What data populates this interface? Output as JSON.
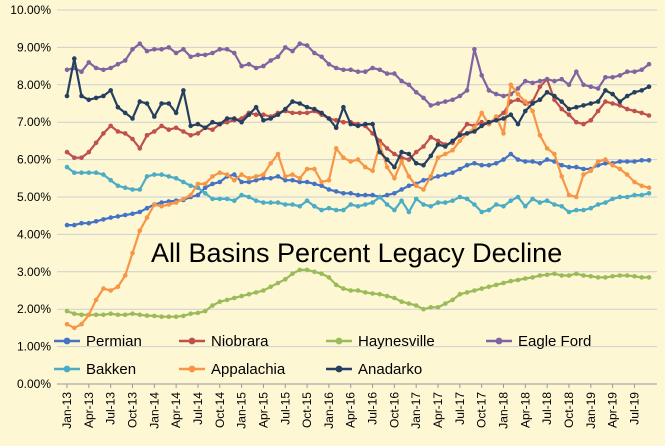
{
  "chart_data": {
    "type": "line",
    "title": "All Basins Percent Legacy Decline",
    "ylim": [
      0,
      10
    ],
    "y_ticks": [
      "0.00%",
      "1.00%",
      "2.00%",
      "3.00%",
      "4.00%",
      "5.00%",
      "6.00%",
      "7.00%",
      "8.00%",
      "9.00%",
      "10.00%"
    ],
    "x_tick_labels": [
      "Jan-13",
      "Apr-13",
      "Jul-13",
      "Oct-13",
      "Jan-14",
      "Apr-14",
      "Jul-14",
      "Oct-14",
      "Jan-15",
      "Apr-15",
      "Jul-15",
      "Oct-15",
      "Jan-16",
      "Apr-16",
      "Jul-16",
      "Oct-16",
      "Jan-17",
      "Apr-17",
      "Jul-17",
      "Oct-17",
      "Jan-18",
      "Apr-18",
      "Jul-18",
      "Oct-18",
      "Jan-19",
      "Apr-19",
      "Jul-19"
    ],
    "x": [
      "Jan-13",
      "Feb-13",
      "Mar-13",
      "Apr-13",
      "May-13",
      "Jun-13",
      "Jul-13",
      "Aug-13",
      "Sep-13",
      "Oct-13",
      "Nov-13",
      "Dec-13",
      "Jan-14",
      "Feb-14",
      "Mar-14",
      "Apr-14",
      "May-14",
      "Jun-14",
      "Jul-14",
      "Aug-14",
      "Sep-14",
      "Oct-14",
      "Nov-14",
      "Dec-14",
      "Jan-15",
      "Feb-15",
      "Mar-15",
      "Apr-15",
      "May-15",
      "Jun-15",
      "Jul-15",
      "Aug-15",
      "Sep-15",
      "Oct-15",
      "Nov-15",
      "Dec-15",
      "Jan-16",
      "Feb-16",
      "Mar-16",
      "Apr-16",
      "May-16",
      "Jun-16",
      "Jul-16",
      "Aug-16",
      "Sep-16",
      "Oct-16",
      "Nov-16",
      "Dec-16",
      "Jan-17",
      "Feb-17",
      "Mar-17",
      "Apr-17",
      "May-17",
      "Jun-17",
      "Jul-17",
      "Aug-17",
      "Sep-17",
      "Oct-17",
      "Nov-17",
      "Dec-17",
      "Jan-18",
      "Feb-18",
      "Mar-18",
      "Apr-18",
      "May-18",
      "Jun-18",
      "Jul-18",
      "Aug-18",
      "Sep-18",
      "Oct-18",
      "Nov-18",
      "Dec-18",
      "Jan-19",
      "Feb-19",
      "Mar-19",
      "Apr-19",
      "May-19",
      "Jun-19",
      "Jul-19",
      "Aug-19",
      "Sep-19"
    ],
    "legend_position": "bottom",
    "grid": "horizontal",
    "series": [
      {
        "name": "Permian",
        "color": "#4472c4",
        "values": [
          4.25,
          4.25,
          4.3,
          4.3,
          4.35,
          4.4,
          4.45,
          4.48,
          4.52,
          4.55,
          4.6,
          4.7,
          4.8,
          4.85,
          4.88,
          4.9,
          4.92,
          5.0,
          5.05,
          5.25,
          5.35,
          5.4,
          5.55,
          5.6,
          5.4,
          5.4,
          5.45,
          5.5,
          5.5,
          5.55,
          5.45,
          5.45,
          5.4,
          5.4,
          5.35,
          5.3,
          5.2,
          5.15,
          5.1,
          5.1,
          5.05,
          5.05,
          5.05,
          5.0,
          5.05,
          5.1,
          5.2,
          5.3,
          5.35,
          5.45,
          5.5,
          5.55,
          5.6,
          5.65,
          5.75,
          5.85,
          5.9,
          5.85,
          5.85,
          5.9,
          6.0,
          6.15,
          6.0,
          5.95,
          5.95,
          5.9,
          6.0,
          5.95,
          5.85,
          5.8,
          5.8,
          5.75,
          5.75,
          5.85,
          5.9,
          5.9,
          5.95,
          5.95,
          5.95,
          5.98,
          5.98
        ]
      },
      {
        "name": "Niobrara",
        "color": "#c0504d",
        "values": [
          6.2,
          6.05,
          6.05,
          6.2,
          6.45,
          6.7,
          6.9,
          6.75,
          6.7,
          6.55,
          6.3,
          6.65,
          6.75,
          6.9,
          6.8,
          6.85,
          6.75,
          6.65,
          6.7,
          6.85,
          6.8,
          6.95,
          7.0,
          7.05,
          7.1,
          7.25,
          7.2,
          7.2,
          7.15,
          7.25,
          7.3,
          7.25,
          7.25,
          7.25,
          7.3,
          7.2,
          7.1,
          7.05,
          7.0,
          7.0,
          6.95,
          6.9,
          6.7,
          6.5,
          6.3,
          6.15,
          6.05,
          6.0,
          6.2,
          6.35,
          6.6,
          6.5,
          6.4,
          6.45,
          6.7,
          6.95,
          6.9,
          7.0,
          6.95,
          7.1,
          7.25,
          7.55,
          7.6,
          7.5,
          7.55,
          7.95,
          8.15,
          7.6,
          7.35,
          7.2,
          7.0,
          6.95,
          7.05,
          7.3,
          7.55,
          7.5,
          7.45,
          7.35,
          7.3,
          7.25,
          7.18
        ]
      },
      {
        "name": "Haynesville",
        "color": "#9bbb59",
        "values": [
          1.95,
          1.88,
          1.85,
          1.85,
          1.85,
          1.85,
          1.88,
          1.85,
          1.85,
          1.88,
          1.85,
          1.83,
          1.82,
          1.8,
          1.8,
          1.8,
          1.82,
          1.88,
          1.9,
          1.95,
          2.1,
          2.2,
          2.25,
          2.3,
          2.35,
          2.4,
          2.45,
          2.5,
          2.6,
          2.7,
          2.8,
          2.95,
          3.05,
          3.05,
          3.0,
          2.95,
          2.85,
          2.65,
          2.55,
          2.5,
          2.5,
          2.45,
          2.42,
          2.4,
          2.35,
          2.3,
          2.2,
          2.15,
          2.1,
          2.0,
          2.05,
          2.05,
          2.15,
          2.25,
          2.4,
          2.45,
          2.5,
          2.55,
          2.6,
          2.65,
          2.7,
          2.75,
          2.78,
          2.82,
          2.85,
          2.9,
          2.92,
          2.95,
          2.9,
          2.9,
          2.95,
          2.9,
          2.88,
          2.85,
          2.85,
          2.88,
          2.9,
          2.9,
          2.88,
          2.85,
          2.85
        ]
      },
      {
        "name": "Eagle  Ford",
        "color": "#8064a2",
        "values": [
          8.4,
          8.45,
          8.35,
          8.6,
          8.45,
          8.4,
          8.45,
          8.55,
          8.65,
          8.95,
          9.1,
          8.9,
          8.95,
          8.95,
          9.0,
          8.85,
          8.95,
          8.75,
          8.8,
          8.8,
          8.85,
          8.95,
          8.95,
          8.85,
          8.5,
          8.55,
          8.45,
          8.5,
          8.65,
          8.75,
          9.0,
          8.9,
          9.1,
          9.05,
          8.85,
          8.75,
          8.55,
          8.45,
          8.4,
          8.4,
          8.35,
          8.35,
          8.45,
          8.4,
          8.3,
          8.3,
          8.1,
          8.0,
          7.8,
          7.65,
          7.45,
          7.5,
          7.55,
          7.6,
          7.7,
          7.85,
          8.95,
          8.25,
          7.85,
          7.75,
          7.7,
          7.75,
          7.9,
          8.1,
          8.05,
          8.1,
          8.15,
          8.1,
          8.15,
          8.0,
          8.35,
          8.0,
          7.95,
          7.9,
          8.2,
          8.2,
          8.25,
          8.35,
          8.35,
          8.4,
          8.55
        ]
      },
      {
        "name": "Bakken",
        "color": "#4bacc6",
        "values": [
          5.8,
          5.65,
          5.65,
          5.65,
          5.65,
          5.6,
          5.45,
          5.3,
          5.25,
          5.2,
          5.2,
          5.55,
          5.6,
          5.6,
          5.55,
          5.5,
          5.4,
          5.3,
          5.25,
          5.1,
          4.95,
          4.95,
          4.95,
          4.9,
          5.05,
          5.0,
          4.9,
          4.85,
          4.85,
          4.85,
          4.8,
          4.8,
          4.75,
          4.9,
          4.75,
          4.65,
          4.7,
          4.65,
          4.65,
          4.8,
          4.75,
          4.8,
          4.85,
          5.0,
          4.8,
          4.65,
          4.9,
          4.6,
          4.95,
          4.8,
          4.75,
          4.85,
          4.85,
          4.9,
          5.0,
          4.95,
          4.8,
          4.6,
          4.65,
          4.8,
          4.75,
          4.9,
          5.0,
          4.75,
          4.95,
          4.85,
          4.9,
          4.8,
          4.75,
          4.6,
          4.65,
          4.65,
          4.7,
          4.8,
          4.85,
          4.95,
          5.0,
          5.0,
          5.05,
          5.05,
          5.1
        ]
      },
      {
        "name": "Appalachia",
        "color": "#f79646",
        "values": [
          1.6,
          1.5,
          1.6,
          1.85,
          2.25,
          2.55,
          2.5,
          2.6,
          2.9,
          3.5,
          4.1,
          4.45,
          4.8,
          4.75,
          4.8,
          4.85,
          4.95,
          5.05,
          5.35,
          5.35,
          5.55,
          5.65,
          5.6,
          5.45,
          5.6,
          5.5,
          5.55,
          5.6,
          5.9,
          6.15,
          5.55,
          5.6,
          5.5,
          5.75,
          5.75,
          5.4,
          5.45,
          6.3,
          6.05,
          5.95,
          6.0,
          5.8,
          5.7,
          6.4,
          5.8,
          5.5,
          5.95,
          5.55,
          5.3,
          5.2,
          5.55,
          6.05,
          6.15,
          6.25,
          6.5,
          6.7,
          6.85,
          7.25,
          6.95,
          7.15,
          6.7,
          8.0,
          7.75,
          7.55,
          7.3,
          6.65,
          6.3,
          6.15,
          5.55,
          5.05,
          5.0,
          5.6,
          5.7,
          5.95,
          6.0,
          5.85,
          5.75,
          5.6,
          5.4,
          5.3,
          5.25
        ]
      },
      {
        "name": "Anadarko",
        "color": "#243f60",
        "values": [
          7.7,
          8.7,
          7.7,
          7.6,
          7.65,
          7.7,
          7.85,
          7.4,
          7.25,
          7.1,
          7.55,
          7.5,
          7.15,
          7.5,
          7.5,
          7.25,
          7.85,
          6.9,
          6.95,
          6.85,
          7.0,
          6.95,
          7.1,
          7.1,
          7.0,
          7.2,
          7.4,
          7.05,
          7.1,
          7.2,
          7.35,
          7.55,
          7.5,
          7.4,
          7.35,
          7.25,
          7.1,
          6.85,
          7.4,
          6.95,
          6.9,
          6.95,
          6.95,
          6.2,
          6.0,
          5.8,
          6.2,
          6.15,
          5.9,
          5.85,
          6.1,
          6.4,
          6.35,
          6.5,
          6.65,
          6.7,
          6.75,
          6.9,
          7.0,
          7.05,
          7.1,
          7.2,
          6.95,
          7.3,
          7.5,
          7.6,
          7.8,
          7.7,
          7.55,
          7.35,
          7.4,
          7.45,
          7.5,
          7.55,
          7.85,
          7.75,
          7.55,
          7.7,
          7.8,
          7.85,
          7.95
        ]
      }
    ]
  }
}
